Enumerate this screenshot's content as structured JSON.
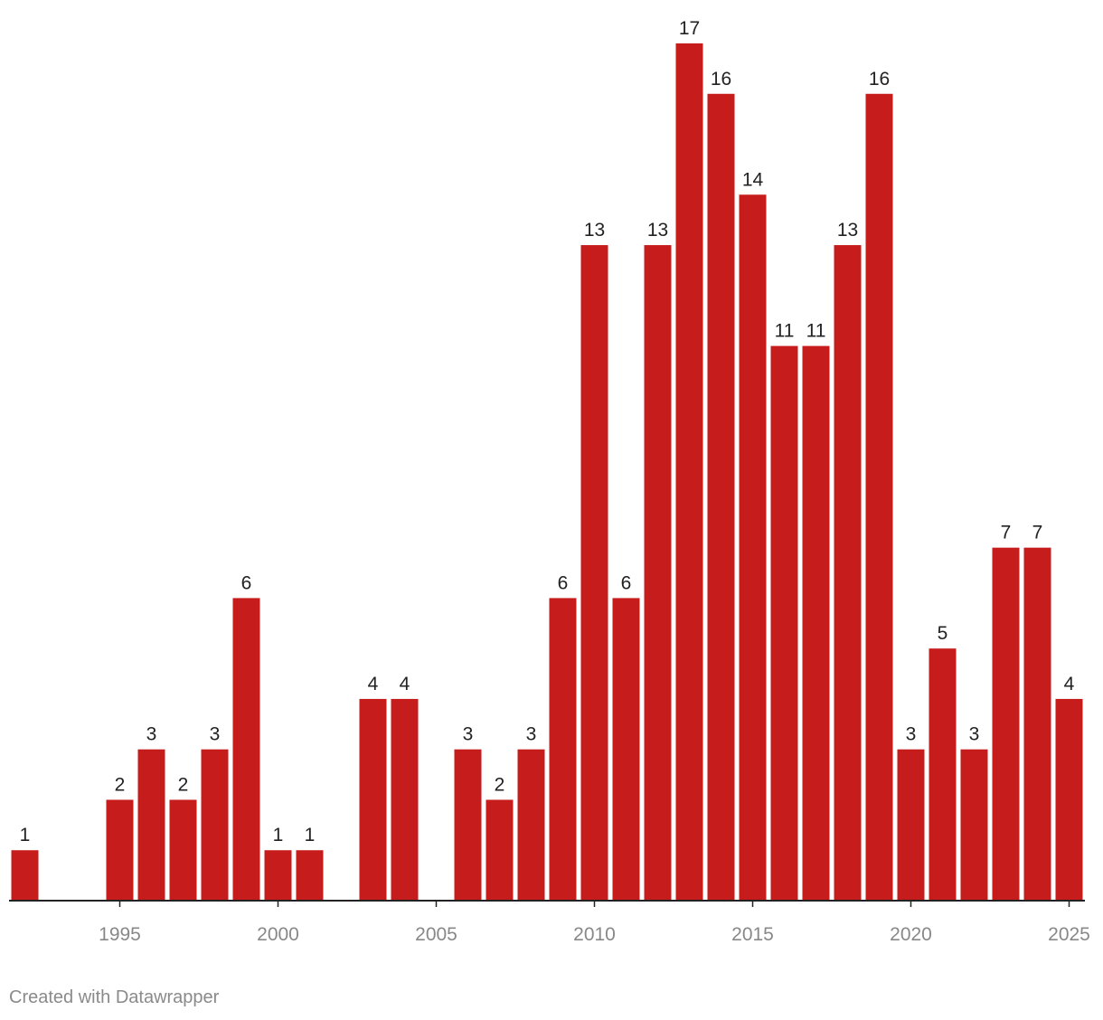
{
  "chart_data": {
    "type": "bar",
    "title": "",
    "xlabel": "",
    "ylabel": "",
    "x": [
      1992,
      1993,
      1994,
      1995,
      1996,
      1997,
      1998,
      1999,
      2000,
      2001,
      2002,
      2003,
      2004,
      2005,
      2006,
      2007,
      2008,
      2009,
      2010,
      2011,
      2012,
      2013,
      2014,
      2015,
      2016,
      2017,
      2018,
      2019,
      2020,
      2021,
      2022,
      2023,
      2024,
      2025
    ],
    "values": [
      1,
      0,
      0,
      2,
      3,
      2,
      3,
      6,
      1,
      1,
      0,
      4,
      4,
      0,
      3,
      2,
      3,
      6,
      13,
      6,
      13,
      17,
      16,
      14,
      11,
      11,
      13,
      16,
      3,
      5,
      3,
      7,
      7,
      4
    ],
    "x_ticks": [
      1995,
      2000,
      2005,
      2010,
      2015,
      2020,
      2025
    ],
    "ylim": [
      0,
      17
    ],
    "grid": false,
    "bar_color": "#c71c1c"
  },
  "footer": {
    "credit": "Created with Datawrapper"
  },
  "colors": {
    "bar": "#c71c1c",
    "label": "#222222",
    "tick_label": "#888888",
    "axis": "#222222"
  }
}
